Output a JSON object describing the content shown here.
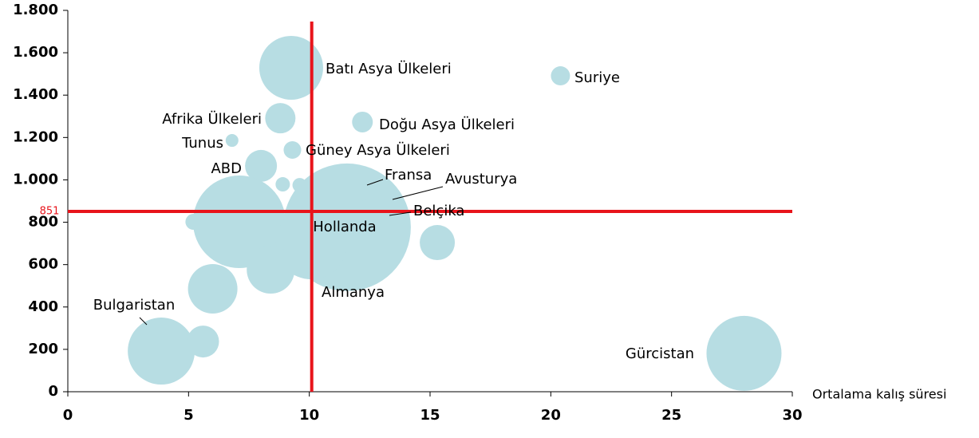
{
  "chart_data": {
    "type": "bubble",
    "x_label": "Ortalama kalış süresi",
    "xlim": [
      0,
      30
    ],
    "xticks": [
      0,
      5,
      10,
      15,
      20,
      25,
      30
    ],
    "ylim": [
      0,
      1800
    ],
    "yticks": [
      0,
      200,
      400,
      600,
      800,
      {
        "value": 1000,
        "label": "1.000"
      },
      {
        "value": 1200,
        "label": "1.200"
      },
      {
        "value": 1400,
        "label": "1.400"
      },
      {
        "value": 1600,
        "label": "1.600"
      },
      {
        "value": 1800,
        "label": "1.800"
      }
    ],
    "color": "#b7dde3",
    "reference_color": "#e8141b",
    "reference_lines": {
      "y": 851,
      "x": 10.1
    },
    "labels": [
      "Batı Asya Ülkeleri",
      "Suriye",
      "Afrika Ülkeleri",
      "Doğu Asya Ülkeleri",
      "Tunus",
      "Güney Asya Ülkeleri",
      "ABD",
      null,
      null,
      "Fransa",
      null,
      null,
      null,
      null,
      "Hollanda",
      "Almanya",
      null,
      null,
      null,
      "Bulgaristan",
      null,
      "Gürcistan",
      "Avusturya",
      "Belçika"
    ],
    "x": [
      9.25,
      20.4,
      8.8,
      12.2,
      6.8,
      9.3,
      8.0,
      8.9,
      9.6,
      11.66,
      7.0,
      7.5,
      7.1,
      5.2,
      11.56,
      10.08,
      8.4,
      15.3,
      6.0,
      3.87,
      5.6,
      28.0,
      13.05,
      12.7
    ],
    "y": [
      1529,
      1491,
      1291,
      1273,
      1186,
      1141,
      1066,
      979,
      975,
      956,
      953,
      960,
      802,
      802,
      776,
      700,
      576,
      704,
      486,
      192,
      237,
      181,
      907,
      825
    ],
    "sizes": [
      40,
      12,
      19,
      13,
      8,
      11,
      20,
      9,
      9,
      22,
      11,
      7,
      58,
      10,
      80,
      45,
      30,
      22,
      31,
      42,
      20,
      47,
      20,
      25
    ]
  }
}
